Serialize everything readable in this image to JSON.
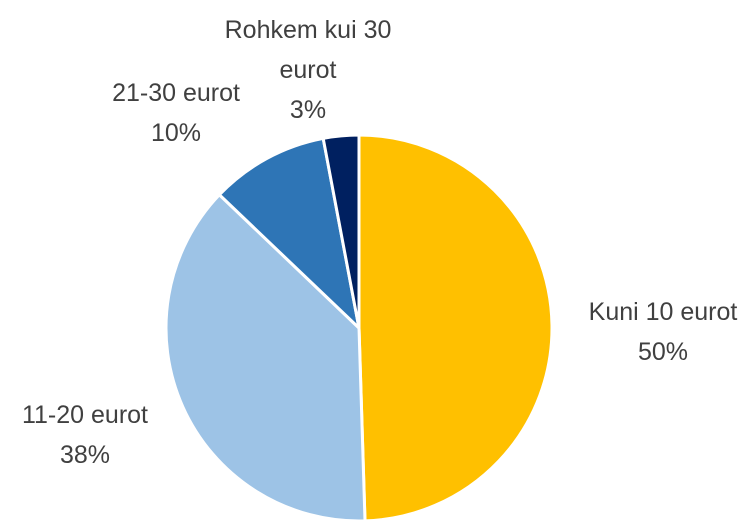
{
  "chart_data": {
    "type": "pie",
    "categories": [
      "Kuni 10 eurot",
      "11-20 eurot",
      "21-30 eurot",
      "Rohkem kui 30 eurot"
    ],
    "values": [
      50,
      38,
      10,
      3
    ],
    "value_labels": [
      "50%",
      "38%",
      "10%",
      "3%"
    ],
    "colors": [
      "#FFC000",
      "#9DC3E6",
      "#2E75B6",
      "#002060"
    ]
  }
}
